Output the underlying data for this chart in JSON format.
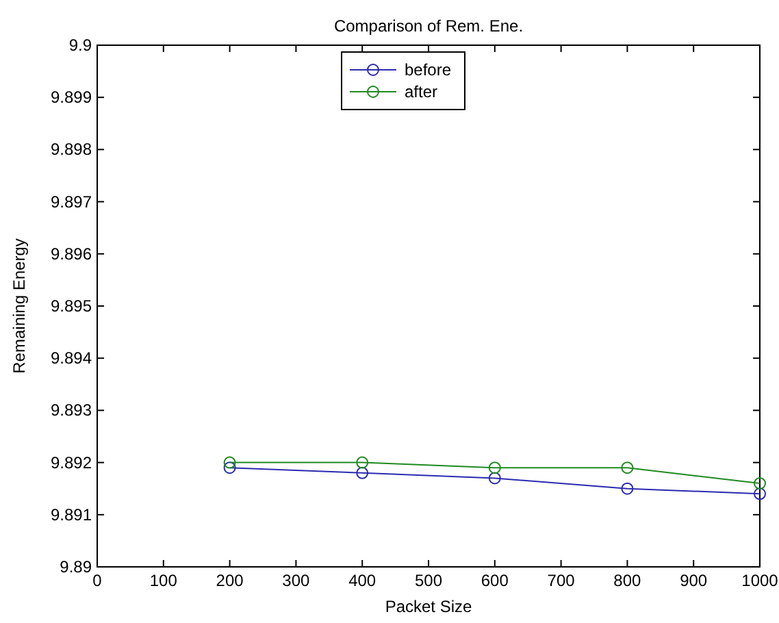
{
  "chart_data": {
    "type": "line",
    "title": "Comparison of Rem. Ene.",
    "xlabel": "Packet Size",
    "ylabel": "Remaining Energy",
    "x": [
      200,
      400,
      600,
      800,
      1000
    ],
    "series": [
      {
        "name": "before",
        "color": "#2b2bb0",
        "values": [
          9.8919,
          9.8918,
          9.8917,
          9.8915,
          9.8914
        ]
      },
      {
        "name": "after",
        "color": "#1f8a1f",
        "values": [
          9.892,
          9.892,
          9.8919,
          9.8919,
          9.8916
        ]
      }
    ],
    "xlim": [
      0,
      1000
    ],
    "xticks": [
      0,
      100,
      200,
      300,
      400,
      500,
      600,
      700,
      800,
      900,
      1000
    ],
    "ylim": [
      9.89,
      9.9
    ],
    "yticks": [
      9.89,
      9.891,
      9.892,
      9.893,
      9.894,
      9.895,
      9.896,
      9.897,
      9.898,
      9.899,
      9.9
    ],
    "grid": false,
    "legend": "top",
    "marker": "circle",
    "line_style": "solid"
  }
}
